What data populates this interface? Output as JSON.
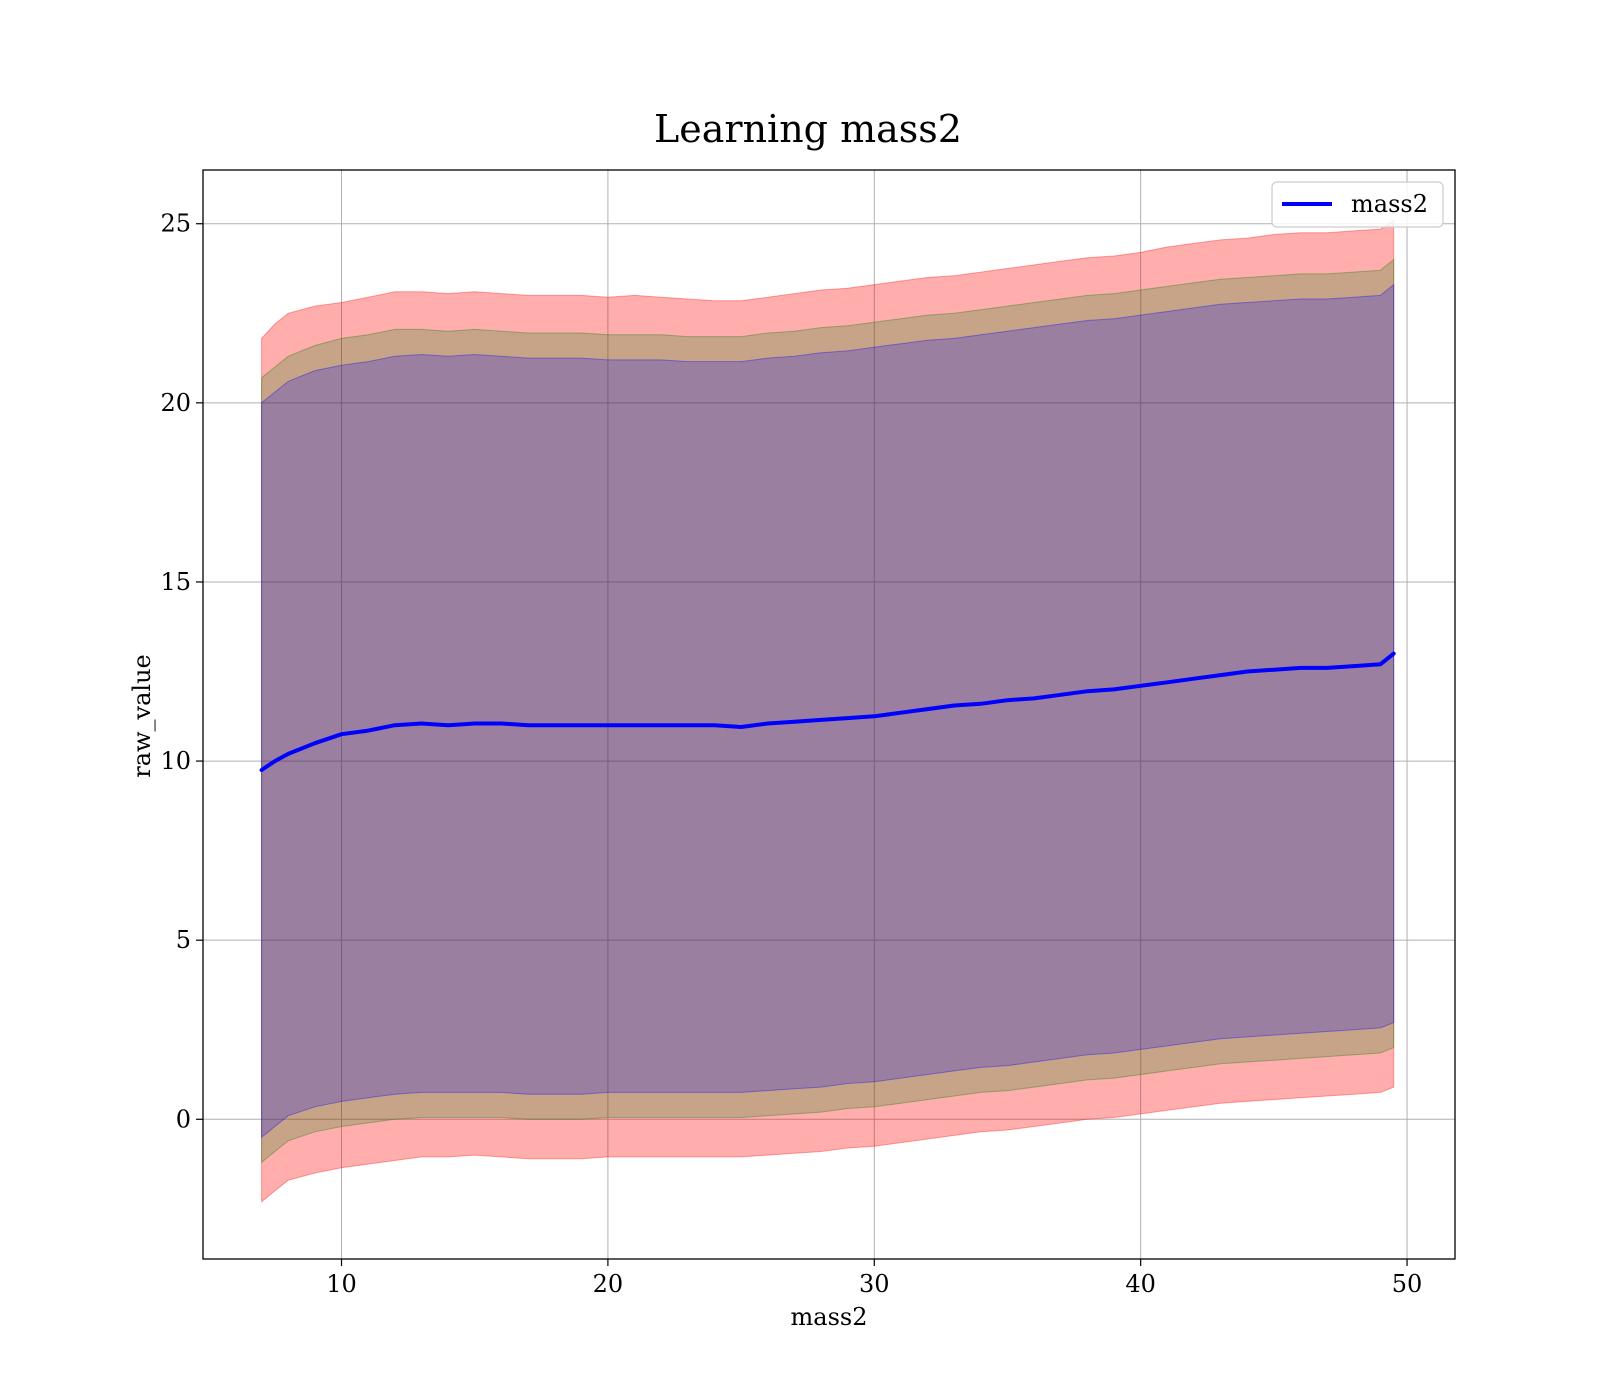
{
  "chart_data": {
    "type": "line",
    "title": "Learning mass2",
    "xlabel": "mass2",
    "ylabel": "raw_value",
    "xlim": [
      4.8,
      51.8
    ],
    "ylim": [
      -3.9,
      26.5
    ],
    "xticks": [
      10,
      20,
      30,
      40,
      50
    ],
    "yticks": [
      0,
      5,
      10,
      15,
      20,
      25
    ],
    "xtick_labels": [
      "10",
      "20",
      "30",
      "40",
      "50"
    ],
    "ytick_labels": [
      "0",
      "5",
      "10",
      "15",
      "20",
      "25"
    ],
    "grid": true,
    "legend_position": "upper right",
    "series": [
      {
        "name": "mass2",
        "color": "#0000ff",
        "x": [
          7.0,
          7.5,
          8.0,
          9.0,
          10.0,
          11.0,
          12.0,
          13.0,
          14.0,
          15.0,
          16.0,
          17.0,
          18.0,
          19.0,
          20.0,
          21.0,
          22.0,
          23.0,
          24.0,
          25.0,
          26.0,
          27.0,
          28.0,
          29.0,
          30.0,
          31.0,
          32.0,
          33.0,
          34.0,
          35.0,
          36.0,
          37.0,
          38.0,
          39.0,
          40.0,
          41.0,
          42.0,
          43.0,
          44.0,
          45.0,
          46.0,
          47.0,
          48.0,
          49.0,
          49.5
        ],
        "y": [
          9.75,
          10.0,
          10.2,
          10.5,
          10.75,
          10.85,
          11.0,
          11.05,
          11.0,
          11.05,
          11.05,
          11.0,
          11.0,
          11.0,
          11.0,
          11.0,
          11.0,
          11.0,
          11.0,
          10.95,
          11.05,
          11.1,
          11.15,
          11.2,
          11.25,
          11.35,
          11.45,
          11.55,
          11.6,
          11.7,
          11.75,
          11.85,
          11.95,
          12.0,
          12.1,
          12.2,
          12.3,
          12.4,
          12.5,
          12.55,
          12.6,
          12.6,
          12.65,
          12.7,
          13.0
        ]
      }
    ],
    "bands": [
      {
        "color": "#ff0000",
        "opacity": 0.32,
        "x": [
          7.0,
          7.5,
          8.0,
          9.0,
          10.0,
          11.0,
          12.0,
          13.0,
          14.0,
          15.0,
          16.0,
          17.0,
          18.0,
          19.0,
          20.0,
          21.0,
          22.0,
          23.0,
          24.0,
          25.0,
          26.0,
          27.0,
          28.0,
          29.0,
          30.0,
          31.0,
          32.0,
          33.0,
          34.0,
          35.0,
          36.0,
          37.0,
          38.0,
          39.0,
          40.0,
          41.0,
          42.0,
          43.0,
          44.0,
          45.0,
          46.0,
          47.0,
          48.0,
          49.0,
          49.5
        ],
        "upper": [
          21.8,
          22.2,
          22.5,
          22.7,
          22.8,
          22.95,
          23.1,
          23.1,
          23.05,
          23.1,
          23.05,
          23.0,
          23.0,
          23.0,
          22.95,
          23.0,
          22.95,
          22.9,
          22.85,
          22.85,
          22.95,
          23.05,
          23.15,
          23.2,
          23.3,
          23.4,
          23.5,
          23.55,
          23.65,
          23.75,
          23.85,
          23.95,
          24.05,
          24.1,
          24.2,
          24.35,
          24.45,
          24.55,
          24.6,
          24.7,
          24.75,
          24.75,
          24.8,
          24.85,
          25.1
        ],
        "lower": [
          -2.3,
          -2.0,
          -1.7,
          -1.5,
          -1.35,
          -1.25,
          -1.15,
          -1.05,
          -1.05,
          -1.0,
          -1.05,
          -1.1,
          -1.1,
          -1.1,
          -1.05,
          -1.05,
          -1.05,
          -1.05,
          -1.05,
          -1.05,
          -1.0,
          -0.95,
          -0.9,
          -0.8,
          -0.75,
          -0.65,
          -0.55,
          -0.45,
          -0.35,
          -0.3,
          -0.2,
          -0.1,
          0.0,
          0.05,
          0.15,
          0.25,
          0.35,
          0.45,
          0.5,
          0.55,
          0.6,
          0.65,
          0.7,
          0.75,
          0.9
        ]
      },
      {
        "color": "#008000",
        "opacity": 0.22,
        "x": [
          7.0,
          7.5,
          8.0,
          9.0,
          10.0,
          11.0,
          12.0,
          13.0,
          14.0,
          15.0,
          16.0,
          17.0,
          18.0,
          19.0,
          20.0,
          21.0,
          22.0,
          23.0,
          24.0,
          25.0,
          26.0,
          27.0,
          28.0,
          29.0,
          30.0,
          31.0,
          32.0,
          33.0,
          34.0,
          35.0,
          36.0,
          37.0,
          38.0,
          39.0,
          40.0,
          41.0,
          42.0,
          43.0,
          44.0,
          45.0,
          46.0,
          47.0,
          48.0,
          49.0,
          49.5
        ],
        "upper": [
          20.7,
          21.0,
          21.3,
          21.6,
          21.8,
          21.9,
          22.05,
          22.05,
          22.0,
          22.05,
          22.0,
          21.95,
          21.95,
          21.95,
          21.9,
          21.9,
          21.9,
          21.85,
          21.85,
          21.85,
          21.95,
          22.0,
          22.1,
          22.15,
          22.25,
          22.35,
          22.45,
          22.5,
          22.6,
          22.7,
          22.8,
          22.9,
          23.0,
          23.05,
          23.15,
          23.25,
          23.35,
          23.45,
          23.5,
          23.55,
          23.6,
          23.6,
          23.65,
          23.7,
          24.0
        ],
        "lower": [
          -1.2,
          -0.9,
          -0.6,
          -0.35,
          -0.2,
          -0.1,
          0.0,
          0.05,
          0.05,
          0.05,
          0.05,
          0.0,
          0.0,
          0.0,
          0.05,
          0.05,
          0.05,
          0.05,
          0.05,
          0.05,
          0.1,
          0.15,
          0.2,
          0.3,
          0.35,
          0.45,
          0.55,
          0.65,
          0.75,
          0.8,
          0.9,
          1.0,
          1.1,
          1.15,
          1.25,
          1.35,
          1.45,
          1.55,
          1.6,
          1.65,
          1.7,
          1.75,
          1.8,
          1.85,
          2.0
        ]
      },
      {
        "color": "#0000ff",
        "opacity": 0.22,
        "x": [
          7.0,
          7.5,
          8.0,
          9.0,
          10.0,
          11.0,
          12.0,
          13.0,
          14.0,
          15.0,
          16.0,
          17.0,
          18.0,
          19.0,
          20.0,
          21.0,
          22.0,
          23.0,
          24.0,
          25.0,
          26.0,
          27.0,
          28.0,
          29.0,
          30.0,
          31.0,
          32.0,
          33.0,
          34.0,
          35.0,
          36.0,
          37.0,
          38.0,
          39.0,
          40.0,
          41.0,
          42.0,
          43.0,
          44.0,
          45.0,
          46.0,
          47.0,
          48.0,
          49.0,
          49.5
        ],
        "upper": [
          20.0,
          20.3,
          20.6,
          20.9,
          21.05,
          21.15,
          21.3,
          21.35,
          21.3,
          21.35,
          21.3,
          21.25,
          21.25,
          21.25,
          21.2,
          21.2,
          21.2,
          21.15,
          21.15,
          21.15,
          21.25,
          21.3,
          21.4,
          21.45,
          21.55,
          21.65,
          21.75,
          21.8,
          21.9,
          22.0,
          22.1,
          22.2,
          22.3,
          22.35,
          22.45,
          22.55,
          22.65,
          22.75,
          22.8,
          22.85,
          22.9,
          22.9,
          22.95,
          23.0,
          23.3
        ],
        "lower": [
          -0.5,
          -0.2,
          0.1,
          0.35,
          0.5,
          0.6,
          0.7,
          0.75,
          0.75,
          0.75,
          0.75,
          0.7,
          0.7,
          0.7,
          0.75,
          0.75,
          0.75,
          0.75,
          0.75,
          0.75,
          0.8,
          0.85,
          0.9,
          1.0,
          1.05,
          1.15,
          1.25,
          1.35,
          1.45,
          1.5,
          1.6,
          1.7,
          1.8,
          1.85,
          1.95,
          2.05,
          2.15,
          2.25,
          2.3,
          2.35,
          2.4,
          2.45,
          2.5,
          2.55,
          2.7
        ]
      }
    ]
  }
}
